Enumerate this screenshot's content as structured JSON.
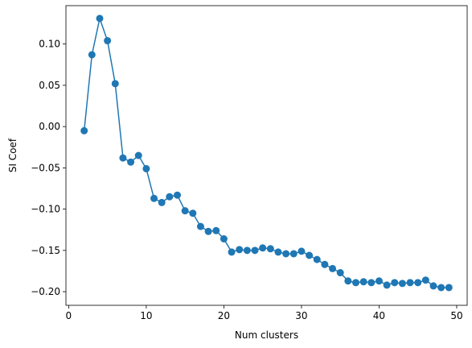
{
  "chart_data": {
    "type": "line",
    "title": "",
    "xlabel": "Num clusters",
    "ylabel": "SI Coef",
    "xlim": [
      -0.35,
      51.35
    ],
    "ylim": [
      -0.2165,
      0.1465
    ],
    "xticks": [
      0,
      10,
      20,
      30,
      40,
      50
    ],
    "xtick_labels": [
      "0",
      "10",
      "20",
      "30",
      "40",
      "50"
    ],
    "yticks": [
      0.1,
      0.05,
      0.0,
      -0.05,
      -0.1,
      -0.15,
      -0.2
    ],
    "ytick_labels": [
      "0.10",
      "0.05",
      "0.00",
      "−0.05",
      "−0.10",
      "−0.15",
      "−0.20"
    ],
    "grid": false,
    "legend": "none",
    "color": "#1f77b4",
    "marker": "circle",
    "series": [
      {
        "x": [
          2,
          3,
          4,
          5,
          6,
          7,
          8,
          9,
          10,
          11,
          12,
          13,
          14,
          15,
          16,
          17,
          18,
          19,
          20,
          21,
          22,
          23,
          24,
          25,
          26,
          27,
          28,
          29,
          30,
          31,
          32,
          33,
          34,
          35,
          36,
          37,
          38,
          39,
          40,
          41,
          42,
          43,
          44,
          45,
          46,
          47,
          48,
          49
        ],
        "y": [
          -0.005,
          0.087,
          0.131,
          0.104,
          0.052,
          -0.038,
          -0.043,
          -0.035,
          -0.051,
          -0.087,
          -0.092,
          -0.085,
          -0.083,
          -0.102,
          -0.105,
          -0.121,
          -0.127,
          -0.126,
          -0.136,
          -0.152,
          -0.149,
          -0.15,
          -0.15,
          -0.147,
          -0.148,
          -0.152,
          -0.154,
          -0.154,
          -0.151,
          -0.156,
          -0.161,
          -0.167,
          -0.172,
          -0.177,
          -0.187,
          -0.189,
          -0.188,
          -0.189,
          -0.187,
          -0.192,
          -0.189,
          -0.19,
          -0.189,
          -0.189,
          -0.186,
          -0.193,
          -0.195,
          -0.195
        ]
      }
    ]
  }
}
